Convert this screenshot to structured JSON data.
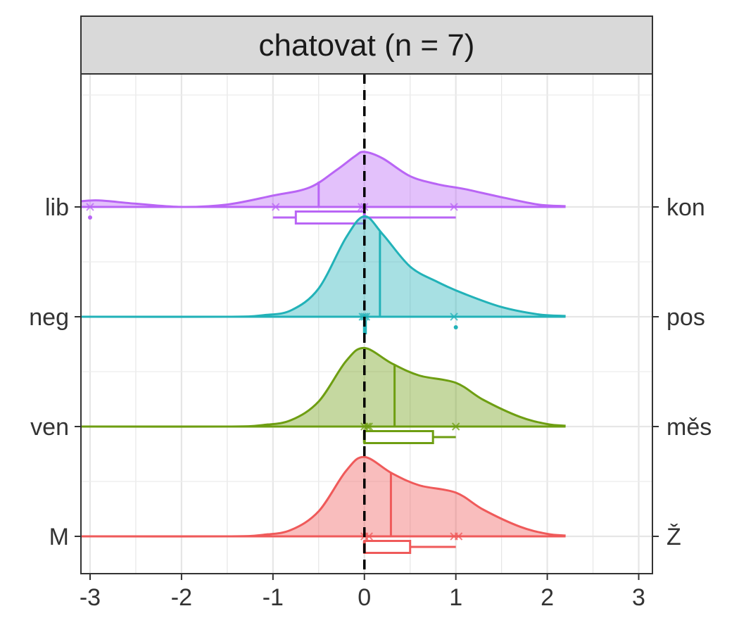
{
  "chart_data": {
    "type": "ridgeline",
    "title": "chatovat (n = 7)",
    "x_ticks": [
      -3,
      -2,
      -1,
      0,
      1,
      2,
      3
    ],
    "xlim": [
      -3.1,
      3.15
    ],
    "reference_line_x": 0,
    "grid": true,
    "legend": "none",
    "rows": [
      {
        "left_label": "lib",
        "right_label": "kon",
        "color": "#b965f5",
        "density": [
          [
            -3.1,
            0.07
          ],
          [
            -2.9,
            0.08
          ],
          [
            -2.5,
            0.04
          ],
          [
            -2.0,
            0.0
          ],
          [
            -1.5,
            0.03
          ],
          [
            -1.0,
            0.14
          ],
          [
            -0.6,
            0.24
          ],
          [
            -0.3,
            0.46
          ],
          [
            -0.1,
            0.63
          ],
          [
            0.0,
            0.68
          ],
          [
            0.2,
            0.6
          ],
          [
            0.5,
            0.38
          ],
          [
            0.8,
            0.28
          ],
          [
            1.1,
            0.22
          ],
          [
            1.5,
            0.12
          ],
          [
            1.9,
            0.03
          ],
          [
            2.2,
            0.01
          ]
        ],
        "median_line_x": -0.5,
        "points": [
          -3.0,
          -0.97,
          -0.03,
          0.0,
          0.98
        ],
        "box": {
          "whisker_low": -1.0,
          "q1": -0.75,
          "median": 0.0,
          "q3": 0.0,
          "whisker_high": 1.0,
          "outliers": [
            -3.0
          ]
        }
      },
      {
        "left_label": "neg",
        "right_label": "pos",
        "color": "#22b2b8",
        "density": [
          [
            -3.1,
            0.0
          ],
          [
            -1.5,
            0.0
          ],
          [
            -1.1,
            0.02
          ],
          [
            -0.8,
            0.08
          ],
          [
            -0.5,
            0.35
          ],
          [
            -0.2,
            0.98
          ],
          [
            0.0,
            1.24
          ],
          [
            0.2,
            1.02
          ],
          [
            0.5,
            0.62
          ],
          [
            0.8,
            0.43
          ],
          [
            1.1,
            0.28
          ],
          [
            1.5,
            0.12
          ],
          [
            1.9,
            0.03
          ],
          [
            2.2,
            0.01
          ]
        ],
        "median_line_x": 0.17,
        "points": [
          -0.02,
          0.0,
          0.02,
          0.98
        ],
        "box": {
          "whisker_low": 0.0,
          "q1": 0.0,
          "median": 0.0,
          "q3": 0.0,
          "whisker_high": 0.0,
          "outliers": [
            1.0
          ]
        }
      },
      {
        "left_label": "ven",
        "right_label": "měs",
        "color": "#6e9e12",
        "density": [
          [
            -3.1,
            0.0
          ],
          [
            -1.5,
            0.0
          ],
          [
            -1.1,
            0.02
          ],
          [
            -0.8,
            0.08
          ],
          [
            -0.5,
            0.31
          ],
          [
            -0.2,
            0.81
          ],
          [
            0.0,
            0.97
          ],
          [
            0.3,
            0.78
          ],
          [
            0.6,
            0.63
          ],
          [
            1.0,
            0.54
          ],
          [
            1.3,
            0.33
          ],
          [
            1.7,
            0.12
          ],
          [
            2.0,
            0.03
          ],
          [
            2.2,
            0.01
          ]
        ],
        "median_line_x": 0.33,
        "points": [
          0.0,
          0.03,
          0.05,
          1.0
        ],
        "box": {
          "whisker_low": 0.0,
          "q1": 0.0,
          "median": 0.0,
          "q3": 0.75,
          "whisker_high": 1.0,
          "outliers": []
        }
      },
      {
        "left_label": "M",
        "right_label": "Ž",
        "color": "#ef5a5a",
        "density": [
          [
            -3.1,
            0.0
          ],
          [
            -1.5,
            0.0
          ],
          [
            -1.1,
            0.02
          ],
          [
            -0.8,
            0.08
          ],
          [
            -0.5,
            0.31
          ],
          [
            -0.2,
            0.81
          ],
          [
            0.0,
            0.98
          ],
          [
            0.3,
            0.78
          ],
          [
            0.6,
            0.63
          ],
          [
            1.0,
            0.54
          ],
          [
            1.3,
            0.33
          ],
          [
            1.7,
            0.12
          ],
          [
            2.0,
            0.03
          ],
          [
            2.2,
            0.01
          ]
        ],
        "median_line_x": 0.29,
        "points": [
          0.0,
          0.05,
          0.98,
          1.03
        ],
        "box": {
          "whisker_low": 0.0,
          "q1": 0.0,
          "median": 0.0,
          "q3": 0.5,
          "whisker_high": 1.0,
          "outliers": []
        }
      }
    ]
  }
}
